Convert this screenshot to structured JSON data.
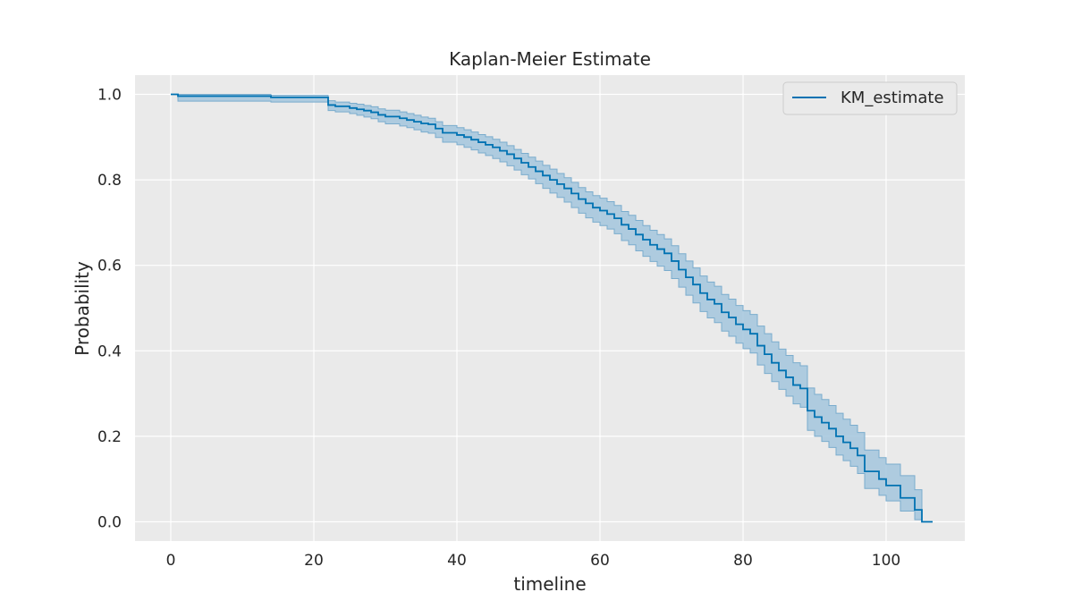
{
  "chart_data": {
    "type": "line",
    "title": "Kaplan-Meier Estimate",
    "xlabel": "timeline",
    "ylabel": "Probability",
    "xlim": [
      -5,
      111
    ],
    "ylim": [
      -0.045,
      1.045
    ],
    "xticks": [
      0,
      20,
      40,
      60,
      80,
      100
    ],
    "yticks": [
      0.0,
      0.2,
      0.4,
      0.6,
      0.8,
      1.0
    ],
    "xtick_labels": [
      "0",
      "20",
      "40",
      "60",
      "80",
      "100"
    ],
    "ytick_labels": [
      "0.0",
      "0.2",
      "0.4",
      "0.6",
      "0.8",
      "1.0"
    ],
    "grid": true,
    "legend_position": "top-right",
    "colors": {
      "line": "#0072b2",
      "band": "#a3c6dd",
      "band_edge": "#7aaccd",
      "background": "#eaeaea",
      "grid": "#ffffff"
    },
    "series": [
      {
        "name": "KM_estimate",
        "step": "post",
        "x": [
          0,
          1,
          14,
          22,
          23,
          25,
          26,
          27,
          28,
          29,
          30,
          32,
          33,
          34,
          35,
          36,
          37,
          38,
          40,
          41,
          42,
          43,
          44,
          45,
          46,
          47,
          48,
          49,
          50,
          51,
          52,
          53,
          54,
          55,
          56,
          57,
          58,
          59,
          60,
          61,
          62,
          63,
          64,
          65,
          66,
          67,
          68,
          69,
          70,
          71,
          72,
          73,
          74,
          75,
          76,
          77,
          78,
          79,
          80,
          81,
          82,
          83,
          84,
          85,
          86,
          87,
          88,
          89,
          90,
          91,
          92,
          93,
          94,
          95,
          96,
          97,
          98,
          99,
          100,
          101,
          102,
          104,
          105,
          106.5
        ],
        "y": [
          1.0,
          0.996,
          0.993,
          0.975,
          0.972,
          0.968,
          0.965,
          0.962,
          0.958,
          0.952,
          0.948,
          0.944,
          0.94,
          0.936,
          0.932,
          0.93,
          0.92,
          0.91,
          0.905,
          0.9,
          0.894,
          0.888,
          0.882,
          0.876,
          0.868,
          0.86,
          0.85,
          0.84,
          0.83,
          0.82,
          0.81,
          0.8,
          0.79,
          0.78,
          0.768,
          0.755,
          0.745,
          0.735,
          0.728,
          0.72,
          0.71,
          0.695,
          0.685,
          0.672,
          0.66,
          0.648,
          0.638,
          0.628,
          0.61,
          0.59,
          0.572,
          0.555,
          0.535,
          0.52,
          0.51,
          0.49,
          0.478,
          0.462,
          0.45,
          0.44,
          0.412,
          0.392,
          0.372,
          0.354,
          0.338,
          0.32,
          0.312,
          0.26,
          0.245,
          0.232,
          0.218,
          0.2,
          0.186,
          0.172,
          0.155,
          0.118,
          0.118,
          0.1,
          0.085,
          0.085,
          0.056,
          0.028,
          0.0,
          0.0
        ],
        "ci_upper": [
          1.0,
          1.0,
          0.998,
          0.985,
          0.982,
          0.979,
          0.977,
          0.974,
          0.971,
          0.966,
          0.963,
          0.959,
          0.955,
          0.951,
          0.947,
          0.944,
          0.936,
          0.927,
          0.922,
          0.917,
          0.912,
          0.906,
          0.901,
          0.895,
          0.888,
          0.88,
          0.871,
          0.862,
          0.853,
          0.844,
          0.834,
          0.825,
          0.815,
          0.805,
          0.794,
          0.782,
          0.772,
          0.763,
          0.757,
          0.749,
          0.74,
          0.726,
          0.717,
          0.705,
          0.693,
          0.682,
          0.672,
          0.662,
          0.646,
          0.627,
          0.61,
          0.594,
          0.575,
          0.561,
          0.551,
          0.532,
          0.521,
          0.506,
          0.494,
          0.485,
          0.458,
          0.44,
          0.421,
          0.404,
          0.389,
          0.372,
          0.365,
          0.313,
          0.298,
          0.286,
          0.272,
          0.254,
          0.24,
          0.226,
          0.209,
          0.168,
          0.168,
          0.15,
          0.135,
          0.135,
          0.108,
          0.075,
          0.0,
          0.0
        ],
        "ci_lower": [
          1.0,
          0.984,
          0.982,
          0.962,
          0.959,
          0.955,
          0.951,
          0.947,
          0.943,
          0.936,
          0.931,
          0.926,
          0.922,
          0.917,
          0.912,
          0.909,
          0.899,
          0.888,
          0.882,
          0.876,
          0.87,
          0.863,
          0.857,
          0.85,
          0.842,
          0.833,
          0.823,
          0.812,
          0.802,
          0.791,
          0.78,
          0.769,
          0.759,
          0.748,
          0.735,
          0.722,
          0.711,
          0.701,
          0.693,
          0.685,
          0.674,
          0.658,
          0.648,
          0.634,
          0.621,
          0.609,
          0.598,
          0.588,
          0.569,
          0.549,
          0.53,
          0.512,
          0.492,
          0.477,
          0.466,
          0.446,
          0.434,
          0.418,
          0.405,
          0.395,
          0.367,
          0.347,
          0.328,
          0.31,
          0.294,
          0.276,
          0.268,
          0.214,
          0.2,
          0.188,
          0.174,
          0.156,
          0.143,
          0.13,
          0.113,
          0.078,
          0.078,
          0.062,
          0.049,
          0.049,
          0.025,
          0.005,
          0.0,
          0.0
        ]
      }
    ]
  }
}
